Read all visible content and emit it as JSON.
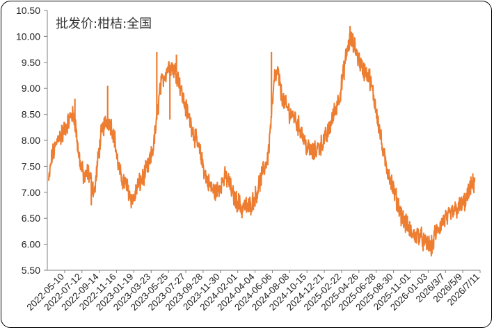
{
  "chart_data": {
    "type": "line",
    "title": "批发价:柑桔:全国",
    "xlabel": "",
    "ylabel": "",
    "ylim": [
      5.5,
      10.5
    ],
    "yticks": [
      "5.50",
      "6.00",
      "6.50",
      "7.00",
      "7.50",
      "8.00",
      "8.50",
      "9.00",
      "9.50",
      "10.00",
      "10.50"
    ],
    "xticks": [
      "2022-05-10",
      "2022-07-12",
      "2022-09-14",
      "2022-11-16",
      "2023-01-19",
      "2023-03-23",
      "2023-05-25",
      "2023-07-27",
      "2023-09-28",
      "2023-11-30",
      "2024-02-01",
      "2024-04-04",
      "2024-06-06",
      "2024-08-08",
      "2024-10-15",
      "2024-12-21",
      "2025-02-22",
      "2025-04-26",
      "2025-06-28",
      "2025-08-30",
      "2025-11-01",
      "2026-01-03",
      "2026/3/7",
      "2026/5/9",
      "2026/7/11"
    ],
    "grid": false,
    "line_color": "#ED7D31",
    "series": [
      {
        "name": "",
        "values": [
          7.2,
          7.7,
          7.85,
          8.1,
          8.05,
          8.25,
          8.35,
          8.5,
          8.4,
          7.8,
          7.45,
          7.25,
          7.4,
          7.2,
          7.0,
          7.6,
          8.1,
          8.3,
          8.4,
          8.3,
          8.1,
          7.6,
          7.3,
          7.2,
          7.1,
          6.9,
          6.85,
          7.1,
          7.2,
          7.3,
          7.45,
          7.6,
          7.9,
          8.4,
          9.0,
          9.2,
          9.35,
          9.45,
          9.4,
          9.3,
          9.1,
          8.8,
          8.6,
          8.4,
          8.2,
          8.0,
          7.8,
          7.55,
          7.3,
          7.15,
          7.05,
          7.0,
          7.1,
          7.2,
          7.3,
          7.2,
          7.0,
          6.85,
          6.8,
          6.7,
          6.75,
          6.7,
          6.8,
          6.9,
          7.1,
          7.3,
          7.5,
          7.7,
          8.5,
          9.2,
          9.3,
          8.9,
          8.7,
          8.6,
          8.5,
          8.45,
          8.3,
          8.2,
          8.0,
          7.85,
          7.8,
          7.75,
          7.85,
          7.9,
          8.0,
          8.1,
          8.3,
          8.5,
          8.7,
          8.9,
          9.3,
          9.7,
          9.95,
          9.85,
          9.7,
          9.5,
          9.35,
          9.3,
          9.2,
          8.9,
          8.6,
          8.2,
          7.8,
          7.5,
          7.35,
          7.1,
          6.9,
          6.7,
          6.5,
          6.4,
          6.3,
          6.2,
          6.15,
          6.2,
          6.1,
          6.0,
          6.0,
          5.95,
          6.2,
          6.3,
          6.4,
          6.5,
          6.5,
          6.6,
          6.65,
          6.7,
          6.75,
          6.8,
          6.95,
          7.1,
          7.2
        ],
        "spikes": [
          {
            "x_index": 4,
            "value": 8.3
          },
          {
            "x_index": 8,
            "value": 8.8
          },
          {
            "x_index": 13,
            "value": 6.75
          },
          {
            "x_index": 18,
            "value": 9.05
          },
          {
            "x_index": 20,
            "value": 8.15
          },
          {
            "x_index": 33,
            "value": 9.7
          },
          {
            "x_index": 37,
            "value": 8.4
          },
          {
            "x_index": 39,
            "value": 9.65
          },
          {
            "x_index": 59,
            "value": 6.5
          },
          {
            "x_index": 68,
            "value": 9.7
          },
          {
            "x_index": 92,
            "value": 10.2
          },
          {
            "x_index": 117,
            "value": 5.82
          },
          {
            "x_index": 130,
            "value": 7.28
          }
        ]
      }
    ]
  }
}
